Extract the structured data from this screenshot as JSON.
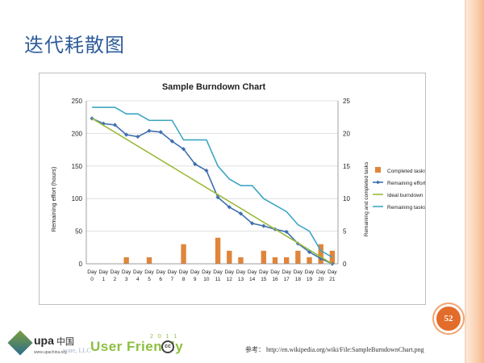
{
  "slide": {
    "title": "迭代耗散图",
    "page_number": "52",
    "reference": "参考：  http://en.wikipedia.org/wiki/File:SampleBurndownChart.png",
    "faded_caption": "ware, LLC",
    "logo": {
      "name": "upa",
      "suffix": "中国",
      "url": "www.upachina.org"
    },
    "user_friendly": {
      "text": "User Friendly",
      "year": "2 0 1 1",
      "cc": "cc"
    },
    "colors": {
      "title": "#2e5c9a",
      "badge": "#e36c2a"
    }
  },
  "chart_data": {
    "type": "bar",
    "title": "Sample Burndown Chart",
    "ylabel": "Remaining effort (hours)",
    "y2label": "Remaining and completed tasks",
    "ylim": [
      0,
      250
    ],
    "y2lim": [
      0,
      25
    ],
    "yticks": [
      0,
      50,
      100,
      150,
      200,
      250
    ],
    "y2ticks": [
      0,
      5,
      10,
      15,
      20,
      25
    ],
    "categories": [
      "Day 0",
      "Day 1",
      "Day 2",
      "Day 3",
      "Day 4",
      "Day 5",
      "Day 6",
      "Day 7",
      "Day 8",
      "Day 9",
      "Day 10",
      "Day 11",
      "Day 12",
      "Day 13",
      "Day 14",
      "Day 15",
      "Day 16",
      "Day 17",
      "Day 18",
      "Day 19",
      "Day 20",
      "Day 21"
    ],
    "series": [
      {
        "name": "Completed tasks",
        "type": "bar",
        "axis": "right",
        "color": "#e0853a",
        "values": [
          0,
          0,
          0,
          1,
          0,
          1,
          0,
          0,
          3,
          0,
          0,
          4,
          2,
          1,
          0,
          2,
          1,
          1,
          2,
          1,
          3,
          2
        ]
      },
      {
        "name": "Remaining effort",
        "type": "line",
        "axis": "left",
        "color": "#3f6fae",
        "marker": "diamond",
        "values": [
          223,
          215,
          213,
          198,
          195,
          204,
          202,
          188,
          176,
          153,
          143,
          102,
          87,
          77,
          62,
          58,
          53,
          49,
          31,
          18,
          8,
          0
        ]
      },
      {
        "name": "Ideal burndown",
        "type": "line",
        "axis": "left",
        "color": "#9bbb3c",
        "values": [
          223,
          212.4,
          201.8,
          191.1,
          180.5,
          169.9,
          159.3,
          148.7,
          138,
          127.4,
          116.8,
          106.2,
          95.6,
          85,
          74.3,
          63.7,
          53.1,
          42.5,
          31.9,
          21.2,
          10.6,
          0
        ]
      },
      {
        "name": "Remaining tasks",
        "type": "line",
        "axis": "right",
        "color": "#3ea6c4",
        "values": [
          24,
          24,
          24,
          23,
          23,
          22,
          22,
          22,
          19,
          19,
          19,
          15,
          13,
          12,
          12,
          10,
          9,
          8,
          6,
          5,
          2,
          1
        ]
      }
    ],
    "legend_position": "right",
    "grid": true
  }
}
